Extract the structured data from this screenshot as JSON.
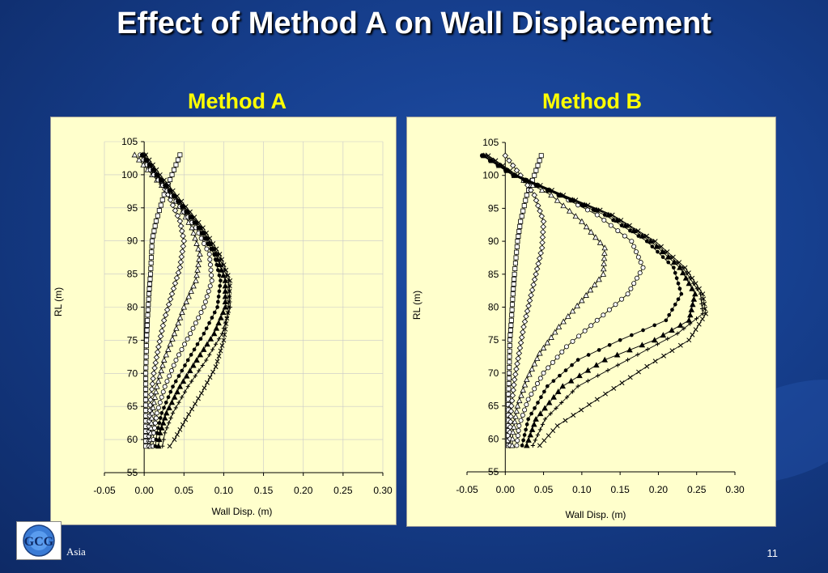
{
  "slide": {
    "title": "Effect of Method A on Wall Displacement",
    "footer": "Asia",
    "page_number": "11",
    "logo_text": "GCG"
  },
  "chart_data": [
    {
      "type": "line",
      "title": "Method A",
      "xlabel": "Wall Disp. (m)",
      "ylabel": "RL (m)",
      "xlim": [
        -0.05,
        0.3
      ],
      "ylim": [
        55,
        105
      ],
      "xticks": [
        "-0.05",
        "0.00",
        "0.05",
        "0.10",
        "0.15",
        "0.20",
        "0.25",
        "0.30"
      ],
      "yticks": [
        "55",
        "60",
        "65",
        "70",
        "75",
        "80",
        "85",
        "90",
        "95",
        "100",
        "105"
      ],
      "grid": true,
      "series": [
        {
          "marker": "square",
          "points": [
            [
              0.045,
              103
            ],
            [
              0.035,
              100
            ],
            [
              0.025,
              97
            ],
            [
              0.015,
              93
            ],
            [
              0.01,
              90
            ],
            [
              0.008,
              85
            ],
            [
              0.006,
              82
            ],
            [
              0.004,
              78
            ],
            [
              0.003,
              75
            ],
            [
              0.002,
              70
            ],
            [
              0.002,
              66
            ],
            [
              0.002,
              62
            ],
            [
              0.002,
              59
            ]
          ]
        },
        {
          "marker": "diamond",
          "points": [
            [
              0.0,
              103
            ],
            [
              0.01,
              101
            ],
            [
              0.03,
              97
            ],
            [
              0.045,
              93
            ],
            [
              0.05,
              90
            ],
            [
              0.045,
              86
            ],
            [
              0.035,
              82
            ],
            [
              0.025,
              78
            ],
            [
              0.018,
              74
            ],
            [
              0.012,
              70
            ],
            [
              0.008,
              66
            ],
            [
              0.006,
              62
            ],
            [
              0.006,
              59
            ]
          ]
        },
        {
          "marker": "triangle-open",
          "points": [
            [
              -0.012,
              103
            ],
            [
              0.01,
              100
            ],
            [
              0.04,
              96
            ],
            [
              0.06,
              92
            ],
            [
              0.07,
              88
            ],
            [
              0.065,
              84
            ],
            [
              0.05,
              80
            ],
            [
              0.038,
              76
            ],
            [
              0.025,
              72
            ],
            [
              0.016,
              68
            ],
            [
              0.01,
              64
            ],
            [
              0.008,
              61
            ],
            [
              0.008,
              59
            ]
          ]
        },
        {
          "marker": "circle",
          "points": [
            [
              -0.005,
              103
            ],
            [
              0.012,
              100
            ],
            [
              0.04,
              96
            ],
            [
              0.065,
              92
            ],
            [
              0.082,
              88
            ],
            [
              0.085,
              84
            ],
            [
              0.075,
              80
            ],
            [
              0.058,
              76
            ],
            [
              0.04,
              72
            ],
            [
              0.026,
              68
            ],
            [
              0.016,
              64
            ],
            [
              0.012,
              61
            ],
            [
              0.011,
              59
            ]
          ]
        },
        {
          "marker": "dot",
          "points": [
            [
              -0.003,
              103
            ],
            [
              0.015,
              100
            ],
            [
              0.042,
              96
            ],
            [
              0.068,
              92
            ],
            [
              0.088,
              88
            ],
            [
              0.096,
              84
            ],
            [
              0.092,
              80
            ],
            [
              0.075,
              76
            ],
            [
              0.055,
              72
            ],
            [
              0.036,
              68
            ],
            [
              0.022,
              64
            ],
            [
              0.016,
              61
            ],
            [
              0.014,
              59
            ]
          ]
        },
        {
          "marker": "triangle",
          "points": [
            [
              -0.002,
              103
            ],
            [
              0.016,
              100
            ],
            [
              0.044,
              96
            ],
            [
              0.07,
              92
            ],
            [
              0.09,
              88
            ],
            [
              0.102,
              84
            ],
            [
              0.102,
              80
            ],
            [
              0.088,
              76
            ],
            [
              0.066,
              72
            ],
            [
              0.045,
              68
            ],
            [
              0.028,
              64
            ],
            [
              0.02,
              61
            ],
            [
              0.018,
              59
            ]
          ]
        },
        {
          "marker": "cross",
          "points": [
            [
              0.0,
              103
            ],
            [
              0.018,
              100
            ],
            [
              0.045,
              96
            ],
            [
              0.072,
              92
            ],
            [
              0.093,
              88
            ],
            [
              0.106,
              84
            ],
            [
              0.108,
              80
            ],
            [
              0.098,
              76
            ],
            [
              0.078,
              72
            ],
            [
              0.055,
              68
            ],
            [
              0.036,
              64
            ],
            [
              0.026,
              61
            ],
            [
              0.023,
              59
            ]
          ]
        },
        {
          "marker": "star",
          "points": [
            [
              0.002,
              103
            ],
            [
              0.02,
              100
            ],
            [
              0.047,
              96
            ],
            [
              0.074,
              92
            ],
            [
              0.095,
              88
            ],
            [
              0.108,
              84
            ],
            [
              0.106,
              80
            ],
            [
              0.1,
              75
            ],
            [
              0.09,
              71
            ],
            [
              0.072,
              67
            ],
            [
              0.052,
              63
            ],
            [
              0.038,
              60
            ],
            [
              0.032,
              59
            ]
          ]
        }
      ]
    },
    {
      "type": "line",
      "title": "Method B",
      "xlabel": "Wall Disp. (m)",
      "ylabel": "RL (m)",
      "xlim": [
        -0.05,
        0.3
      ],
      "ylim": [
        55,
        105
      ],
      "xticks": [
        "-0.05",
        "0.00",
        "0.05",
        "0.10",
        "0.15",
        "0.20",
        "0.25",
        "0.30"
      ],
      "yticks": [
        "55",
        "60",
        "65",
        "70",
        "75",
        "80",
        "85",
        "90",
        "95",
        "100",
        "105"
      ],
      "grid": false,
      "series": [
        {
          "marker": "square",
          "points": [
            [
              0.047,
              103
            ],
            [
              0.038,
              100
            ],
            [
              0.028,
              97
            ],
            [
              0.02,
              93
            ],
            [
              0.016,
              90
            ],
            [
              0.012,
              85
            ],
            [
              0.01,
              82
            ],
            [
              0.008,
              78
            ],
            [
              0.006,
              75
            ],
            [
              0.005,
              70
            ],
            [
              0.004,
              66
            ],
            [
              0.004,
              62
            ],
            [
              0.004,
              59
            ]
          ]
        },
        {
          "marker": "diamond",
          "points": [
            [
              0.0,
              103
            ],
            [
              0.02,
              100
            ],
            [
              0.038,
              97
            ],
            [
              0.05,
              93
            ],
            [
              0.048,
              89
            ],
            [
              0.04,
              85
            ],
            [
              0.032,
              81
            ],
            [
              0.024,
              77
            ],
            [
              0.018,
              73
            ],
            [
              0.012,
              69
            ],
            [
              0.008,
              65
            ],
            [
              0.006,
              61
            ],
            [
              0.006,
              59
            ]
          ]
        },
        {
          "marker": "triangle-open",
          "points": [
            [
              -0.025,
              103
            ],
            [
              0.012,
              100
            ],
            [
              0.06,
              97
            ],
            [
              0.1,
              93
            ],
            [
              0.13,
              89
            ],
            [
              0.128,
              85
            ],
            [
              0.1,
              81
            ],
            [
              0.07,
              77
            ],
            [
              0.045,
              73
            ],
            [
              0.028,
              69
            ],
            [
              0.016,
              65
            ],
            [
              0.01,
              61
            ],
            [
              0.009,
              59
            ]
          ]
        },
        {
          "marker": "circle",
          "points": [
            [
              -0.03,
              103
            ],
            [
              0.012,
              100
            ],
            [
              0.07,
              97
            ],
            [
              0.12,
              94
            ],
            [
              0.165,
              90
            ],
            [
              0.18,
              86
            ],
            [
              0.16,
              82
            ],
            [
              0.12,
              78
            ],
            [
              0.08,
              74
            ],
            [
              0.05,
              70
            ],
            [
              0.03,
              66
            ],
            [
              0.018,
              62
            ],
            [
              0.015,
              59
            ]
          ]
        },
        {
          "marker": "dot",
          "points": [
            [
              -0.03,
              103
            ],
            [
              0.01,
              100
            ],
            [
              0.07,
              97
            ],
            [
              0.13,
              94
            ],
            [
              0.185,
              90
            ],
            [
              0.22,
              86
            ],
            [
              0.23,
              82
            ],
            [
              0.21,
              78
            ],
            [
              0.15,
              75
            ],
            [
              0.095,
              72
            ],
            [
              0.055,
              68
            ],
            [
              0.03,
              63
            ],
            [
              0.022,
              59
            ]
          ]
        },
        {
          "marker": "triangle",
          "points": [
            [
              -0.028,
              103
            ],
            [
              0.012,
              100
            ],
            [
              0.072,
              97
            ],
            [
              0.135,
              94
            ],
            [
              0.19,
              90
            ],
            [
              0.228,
              86
            ],
            [
              0.248,
              82
            ],
            [
              0.24,
              78
            ],
            [
              0.195,
              75
            ],
            [
              0.13,
              72
            ],
            [
              0.075,
              68
            ],
            [
              0.04,
              63
            ],
            [
              0.028,
              59
            ]
          ]
        },
        {
          "marker": "cross",
          "points": [
            [
              -0.025,
              103
            ],
            [
              0.014,
              100
            ],
            [
              0.074,
              97
            ],
            [
              0.138,
              94
            ],
            [
              0.193,
              90
            ],
            [
              0.232,
              86
            ],
            [
              0.255,
              82
            ],
            [
              0.258,
              79
            ],
            [
              0.225,
              76
            ],
            [
              0.16,
              72
            ],
            [
              0.095,
              68
            ],
            [
              0.052,
              63
            ],
            [
              0.036,
              59
            ]
          ]
        },
        {
          "marker": "star",
          "points": [
            [
              -0.022,
              103
            ],
            [
              0.016,
              100
            ],
            [
              0.076,
              97
            ],
            [
              0.14,
              94
            ],
            [
              0.196,
              90
            ],
            [
              0.235,
              86
            ],
            [
              0.258,
              82
            ],
            [
              0.262,
              79
            ],
            [
              0.24,
              75
            ],
            [
              0.185,
              71
            ],
            [
              0.12,
              66
            ],
            [
              0.068,
              62
            ],
            [
              0.045,
              59
            ]
          ]
        }
      ]
    }
  ]
}
